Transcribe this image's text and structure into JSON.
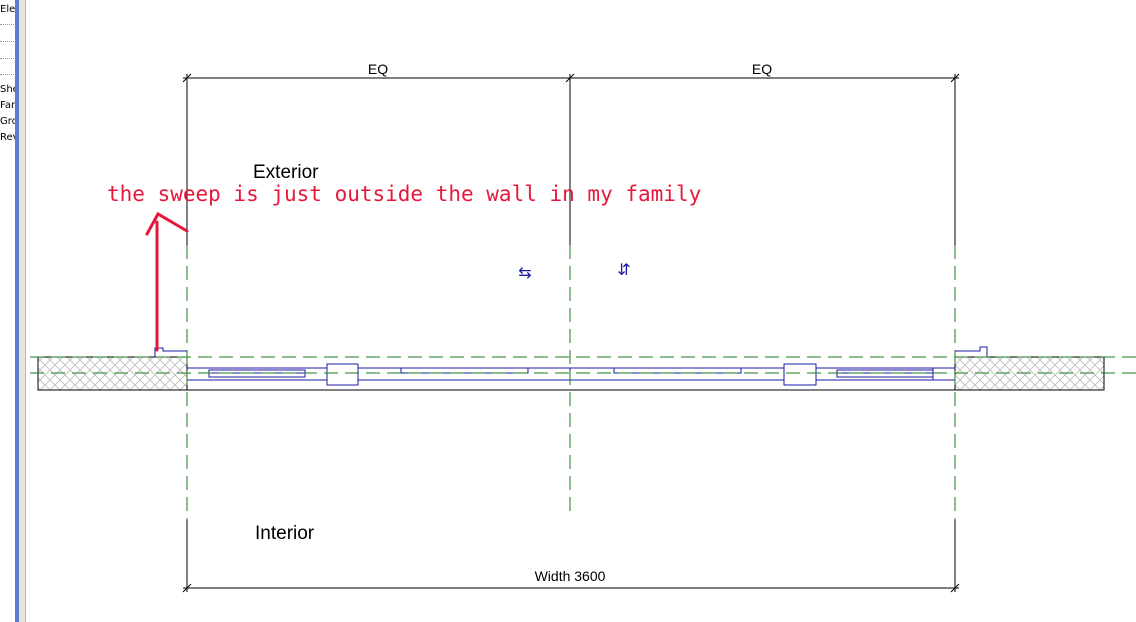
{
  "side_panel": {
    "items": [
      "Ele",
      "She",
      "Fan",
      "Gro",
      "Rev"
    ]
  },
  "dimensions": {
    "top_left": "EQ",
    "top_right": "EQ",
    "bottom": "Width 3600"
  },
  "labels": {
    "exterior": "Exterior",
    "interior": "Interior"
  },
  "annotation": {
    "text": "the sweep is just outside the wall in my family",
    "color": "#e8173a"
  },
  "icons": {
    "flip_horizontal": "⇆",
    "flip_vertical": "⇵"
  },
  "colors": {
    "model_lines": "#1a1aa6",
    "reference_planes": "#1f7a1f",
    "annotation": "#e8173a"
  }
}
